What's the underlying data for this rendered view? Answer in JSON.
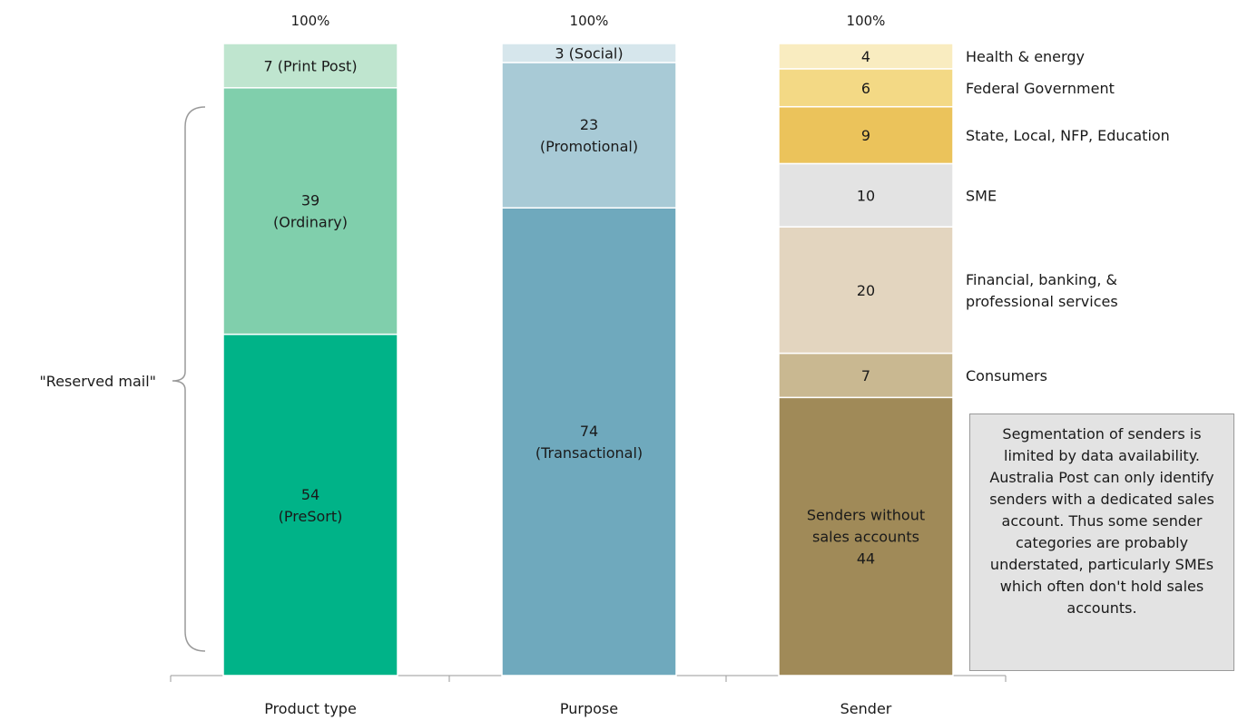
{
  "chart_data": {
    "type": "bar",
    "stacked": true,
    "categories": [
      "Product type",
      "Purpose",
      "Sender"
    ],
    "totals": [
      "100%",
      "100%",
      "100%"
    ],
    "columns": [
      {
        "category": "Product type",
        "segments": [
          {
            "value": 54,
            "label": "PreSort",
            "color": "#00b388"
          },
          {
            "value": 39,
            "label": "Ordinary",
            "color": "#80cfac"
          },
          {
            "value": 7,
            "label": "Print Post",
            "color": "#bfe5cf"
          }
        ]
      },
      {
        "category": "Purpose",
        "segments": [
          {
            "value": 74,
            "label": "Transactional",
            "color": "#6fa9bd"
          },
          {
            "value": 23,
            "label": "Promotional",
            "color": "#a8cad6"
          },
          {
            "value": 3,
            "label": "Social",
            "color": "#d6e6ec"
          }
        ]
      },
      {
        "category": "Sender",
        "segments": [
          {
            "value": 44,
            "label": "Senders without sales accounts",
            "color": "#a08a58"
          },
          {
            "value": 7,
            "label": "Consumers",
            "color": "#c9b891"
          },
          {
            "value": 20,
            "label": "Financial, banking, & professional services",
            "color": "#e3d5bf"
          },
          {
            "value": 10,
            "label": "SME",
            "color": "#e3e3e3"
          },
          {
            "value": 9,
            "label": "State, Local, NFP, Education",
            "color": "#ebc35b"
          },
          {
            "value": 6,
            "label": "Federal Government",
            "color": "#f3d985"
          },
          {
            "value": 4,
            "label": "Health & energy",
            "color": "#f9ecc0"
          }
        ]
      }
    ],
    "bracket_label": "\"Reserved mail\"",
    "note": "Segmentation of senders is limited by data availability. Australia Post can only identify senders with a dedicated sales account. Thus some sender categories are probably understated, particularly SMEs which often don't hold sales accounts."
  }
}
